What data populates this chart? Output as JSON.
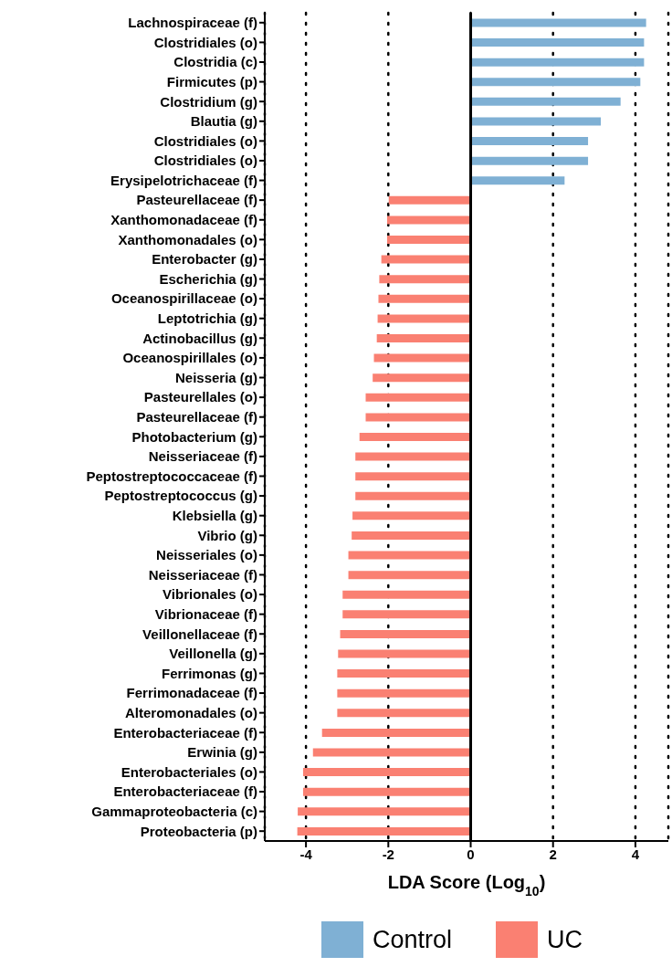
{
  "chart_data": {
    "type": "bar",
    "orientation": "horizontal",
    "stacked": true,
    "xlabel": "LDA Score (Log$_{10}$)",
    "categories": [
      "Lachnospiraceae (f)",
      "Clostridiales (o)",
      "Clostridia (c)",
      "Firmicutes (p)",
      "Clostridium (g)",
      "Blautia (g)",
      "Clostridiales (o)",
      "Clostridiales (o)",
      "Erysipelotrichaceae (f)",
      "Pasteurellaceae (f)",
      "Xanthomonadaceae (f)",
      "Xanthomonadales (o)",
      "Enterobacter (g)",
      "Escherichia (g)",
      "Oceanospirillaceae (o)",
      "Leptotrichia (g)",
      "Actinobacillus (g)",
      "Oceanospirillales (o)",
      "Neisseria (g)",
      "Pasteurellales (o)",
      "Pasteurellaceae (f)",
      "Photobacterium (g)",
      "Neisseriaceae (f)",
      "Peptostreptococcaceae (f)",
      "Peptostreptococcus (g)",
      "Klebsiella (g)",
      "Vibrio (g)",
      "Neisseriales (o)",
      "Neisseriaceae (f)",
      "Vibrionales (o)",
      "Vibrionaceae (f)",
      "Veillonellaceae (f)",
      "Veillonella (g)",
      "Ferrimonas (g)",
      "Ferrimonadaceae (f)",
      "Alteromonadales (o)",
      "Enterobacteriaceae (f)",
      "Erwinia (g)",
      "Enterobacteriales (o)",
      "Enterobacteriaceae (f)",
      "Gammaproteobacteria (c)",
      "Proteobacteria (p)"
    ],
    "series": [
      {
        "name": "Control",
        "color": "#7fb0d4",
        "values": [
          4.26,
          4.21,
          4.21,
          4.12,
          3.64,
          3.16,
          2.85,
          2.85,
          2.28,
          null,
          null,
          null,
          null,
          null,
          null,
          null,
          null,
          null,
          null,
          null,
          null,
          null,
          null,
          null,
          null,
          null,
          null,
          null,
          null,
          null,
          null,
          null,
          null,
          null,
          null,
          null,
          null,
          null,
          null,
          null,
          null,
          null
        ]
      },
      {
        "name": "UC",
        "color": "#fa8072",
        "values": [
          null,
          null,
          null,
          null,
          null,
          null,
          null,
          null,
          null,
          -1.99,
          -2.03,
          -2.03,
          -2.17,
          -2.22,
          -2.24,
          -2.26,
          -2.28,
          -2.35,
          -2.38,
          -2.55,
          -2.55,
          -2.7,
          -2.8,
          -2.8,
          -2.8,
          -2.87,
          -2.89,
          -2.97,
          -2.97,
          -3.11,
          -3.11,
          -3.17,
          -3.22,
          -3.24,
          -3.24,
          -3.24,
          -3.61,
          -3.83,
          -4.07,
          -4.07,
          -4.2,
          -4.21
        ]
      }
    ],
    "xlim": [
      -5,
      4.8
    ],
    "xticks": [
      -4,
      -2,
      0,
      2,
      4
    ],
    "grid": "x",
    "line_style": "dotted",
    "legend": "bottom",
    "ref_lines": [
      {
        "axis": "x",
        "value": 0,
        "color": "#000000",
        "line_style": "solid"
      }
    ]
  }
}
